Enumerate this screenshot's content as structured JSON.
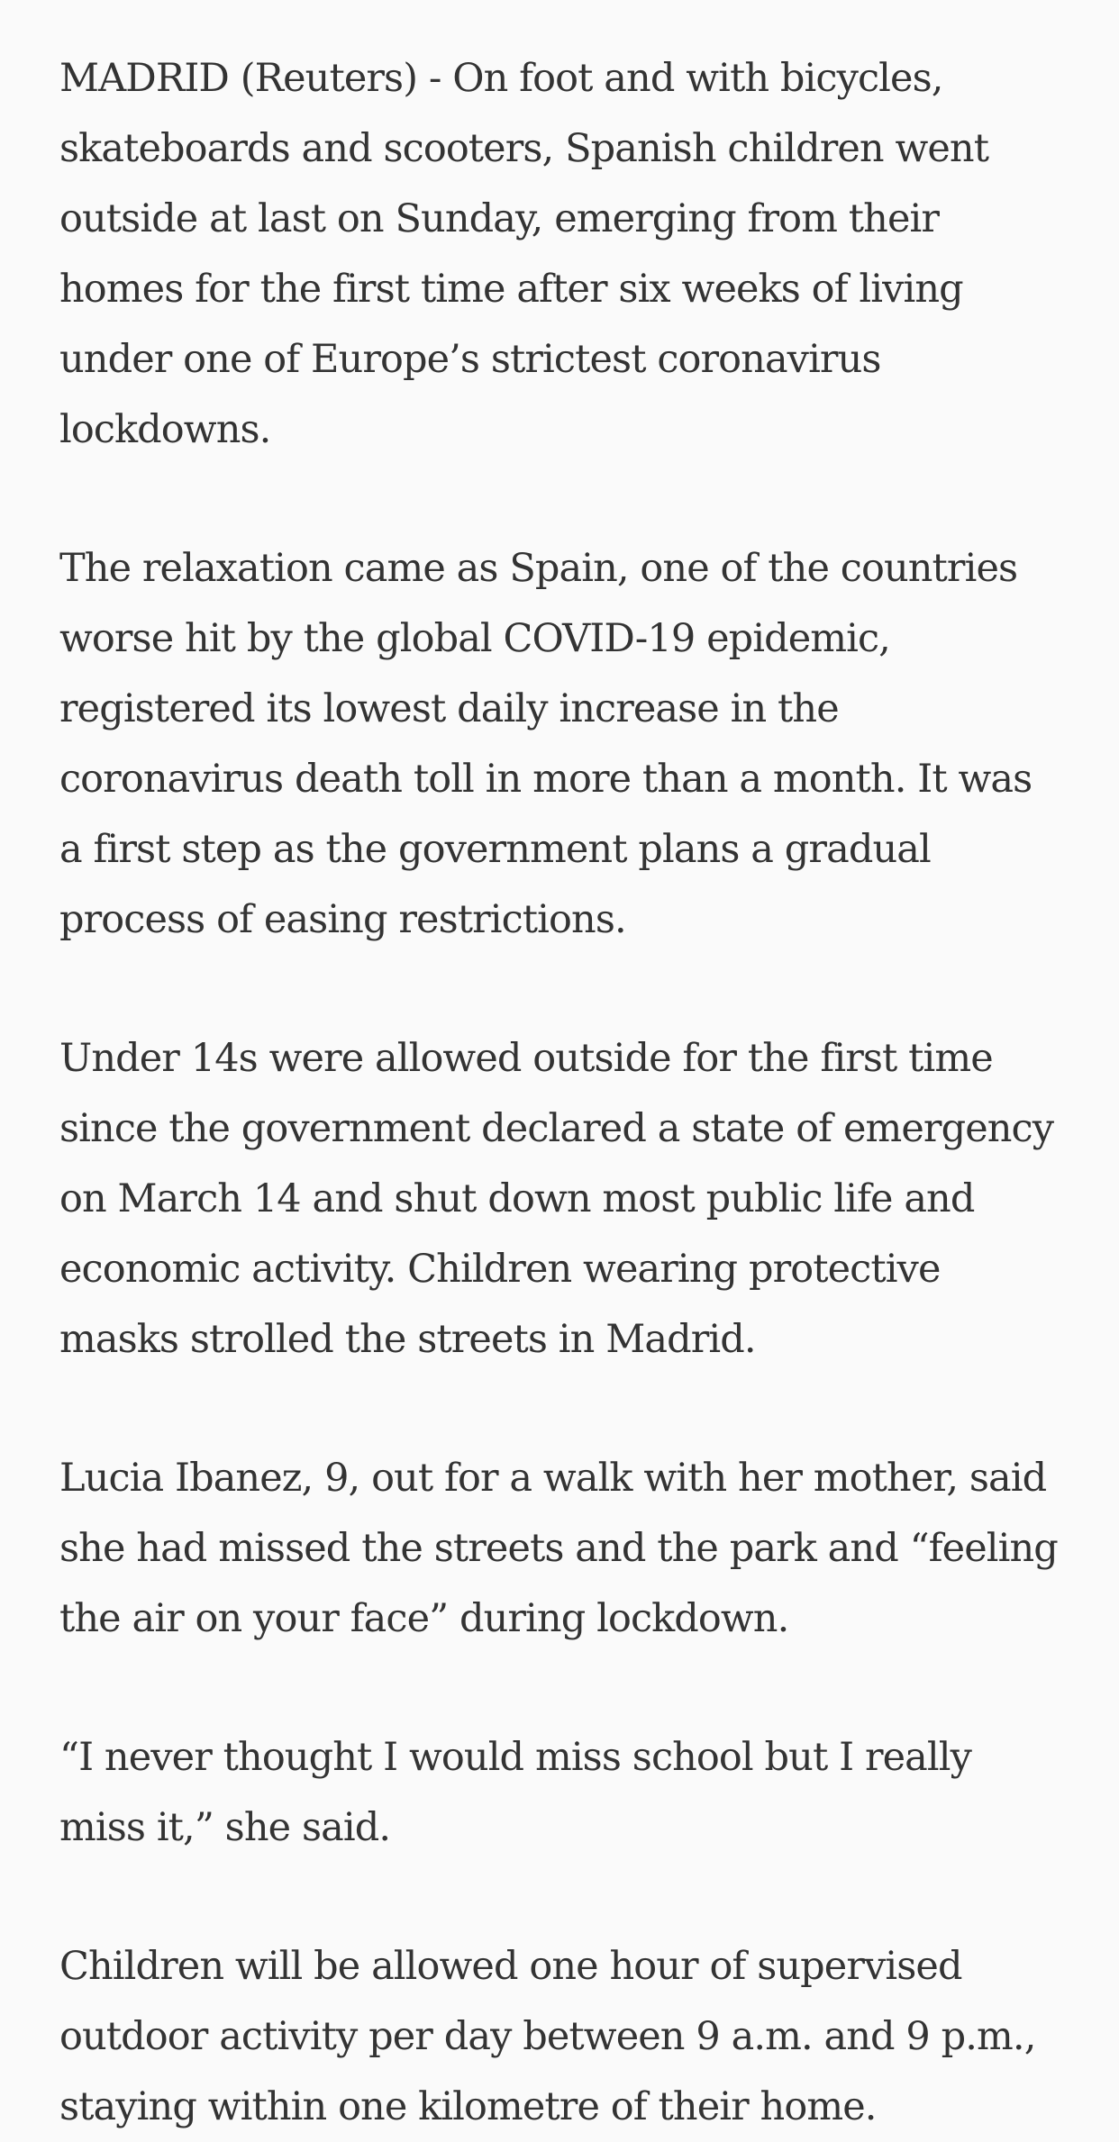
{
  "article": {
    "paragraphs": [
      "MADRID (Reuters) - On foot and with bicycles, skateboards and scooters, Spanish children went outside at last on Sunday, emerging from their homes for the first time after six weeks of living under one of Europe’s strictest coronavirus lockdowns.",
      "The relaxation came as Spain, one of the countries worse hit by the global COVID-19 epidemic, registered its lowest daily increase in the coronavirus death toll in more than a month. It was a first step as the government plans a gradual process of easing restrictions.",
      "Under 14s were allowed outside for the first time since the government declared a state of emergency on March 14 and shut down most public life and economic activity. Children wearing protective masks strolled the streets in Madrid.",
      "Lucia Ibanez, 9, out for a walk with her mother, said she had missed the streets and the park and “feeling the air on your face” during lockdown.",
      "“I never thought I would miss school but I really miss it,” she said.",
      "Children will be allowed one hour of supervised outdoor activity per day between 9 a.m. and 9 p.m., staying within one kilometre of their home."
    ]
  }
}
